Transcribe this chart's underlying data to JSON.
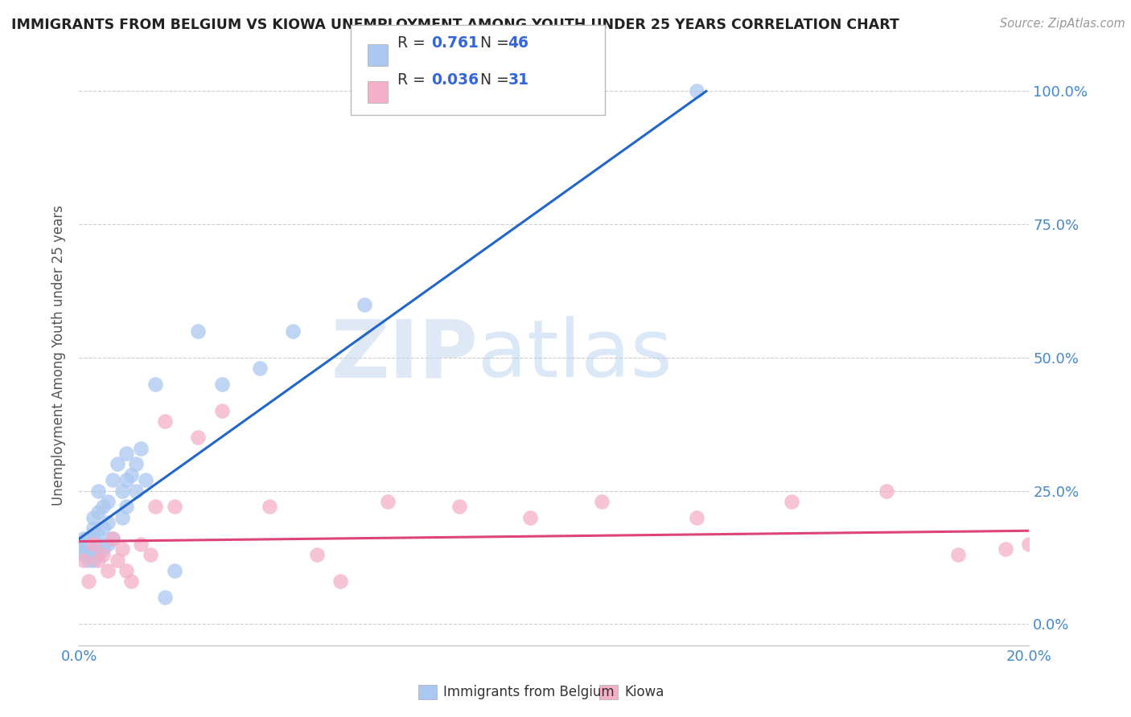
{
  "title": "IMMIGRANTS FROM BELGIUM VS KIOWA UNEMPLOYMENT AMONG YOUTH UNDER 25 YEARS CORRELATION CHART",
  "source": "Source: ZipAtlas.com",
  "ylabel": "Unemployment Among Youth under 25 years",
  "blue_label": "Immigrants from Belgium",
  "pink_label": "Kiowa",
  "blue_R": 0.761,
  "blue_N": 46,
  "pink_R": 0.036,
  "pink_N": 31,
  "blue_color": "#aac8f0",
  "pink_color": "#f4b0c8",
  "blue_line_color": "#2266cc",
  "pink_line_color": "#dd4477",
  "watermark_zip": "ZIP",
  "watermark_atlas": "atlas",
  "x_min": 0.0,
  "x_max": 0.2,
  "y_min": -0.04,
  "y_max": 1.05,
  "yticks": [
    0.0,
    0.25,
    0.5,
    0.75,
    1.0
  ],
  "ytick_labels": [
    "0.0%",
    "25.0%",
    "50.0%",
    "75.0%",
    "100.0%"
  ],
  "xticks": [
    0.0,
    0.05,
    0.1,
    0.15,
    0.2
  ],
  "xtick_labels": [
    "0.0%",
    "",
    "",
    "",
    "20.0%"
  ],
  "blue_line_x0": 0.0,
  "blue_line_y0": 0.16,
  "blue_line_x1": 0.132,
  "blue_line_y1": 1.0,
  "pink_line_x0": 0.0,
  "pink_line_y0": 0.155,
  "pink_line_x1": 0.2,
  "pink_line_y1": 0.175,
  "blue_scatter_x": [
    0.0005,
    0.001,
    0.001,
    0.001,
    0.0015,
    0.0015,
    0.002,
    0.002,
    0.002,
    0.003,
    0.003,
    0.003,
    0.003,
    0.003,
    0.004,
    0.004,
    0.004,
    0.004,
    0.005,
    0.005,
    0.005,
    0.006,
    0.006,
    0.006,
    0.007,
    0.007,
    0.008,
    0.009,
    0.009,
    0.01,
    0.01,
    0.01,
    0.011,
    0.012,
    0.012,
    0.013,
    0.014,
    0.016,
    0.018,
    0.02,
    0.025,
    0.03,
    0.038,
    0.045,
    0.06,
    0.13
  ],
  "blue_scatter_y": [
    0.14,
    0.13,
    0.15,
    0.16,
    0.13,
    0.15,
    0.12,
    0.14,
    0.16,
    0.12,
    0.14,
    0.16,
    0.18,
    0.2,
    0.13,
    0.17,
    0.21,
    0.25,
    0.14,
    0.18,
    0.22,
    0.15,
    0.19,
    0.23,
    0.16,
    0.27,
    0.3,
    0.2,
    0.25,
    0.22,
    0.27,
    0.32,
    0.28,
    0.3,
    0.25,
    0.33,
    0.27,
    0.45,
    0.05,
    0.1,
    0.55,
    0.45,
    0.48,
    0.55,
    0.6,
    1.0
  ],
  "pink_scatter_x": [
    0.001,
    0.002,
    0.003,
    0.004,
    0.005,
    0.006,
    0.007,
    0.008,
    0.009,
    0.01,
    0.011,
    0.013,
    0.015,
    0.016,
    0.018,
    0.02,
    0.025,
    0.03,
    0.04,
    0.05,
    0.055,
    0.065,
    0.08,
    0.095,
    0.11,
    0.13,
    0.15,
    0.17,
    0.185,
    0.195,
    0.2
  ],
  "pink_scatter_y": [
    0.12,
    0.08,
    0.15,
    0.12,
    0.13,
    0.1,
    0.16,
    0.12,
    0.14,
    0.1,
    0.08,
    0.15,
    0.13,
    0.22,
    0.38,
    0.22,
    0.35,
    0.4,
    0.22,
    0.13,
    0.08,
    0.23,
    0.22,
    0.2,
    0.23,
    0.2,
    0.23,
    0.25,
    0.13,
    0.14,
    0.15
  ]
}
